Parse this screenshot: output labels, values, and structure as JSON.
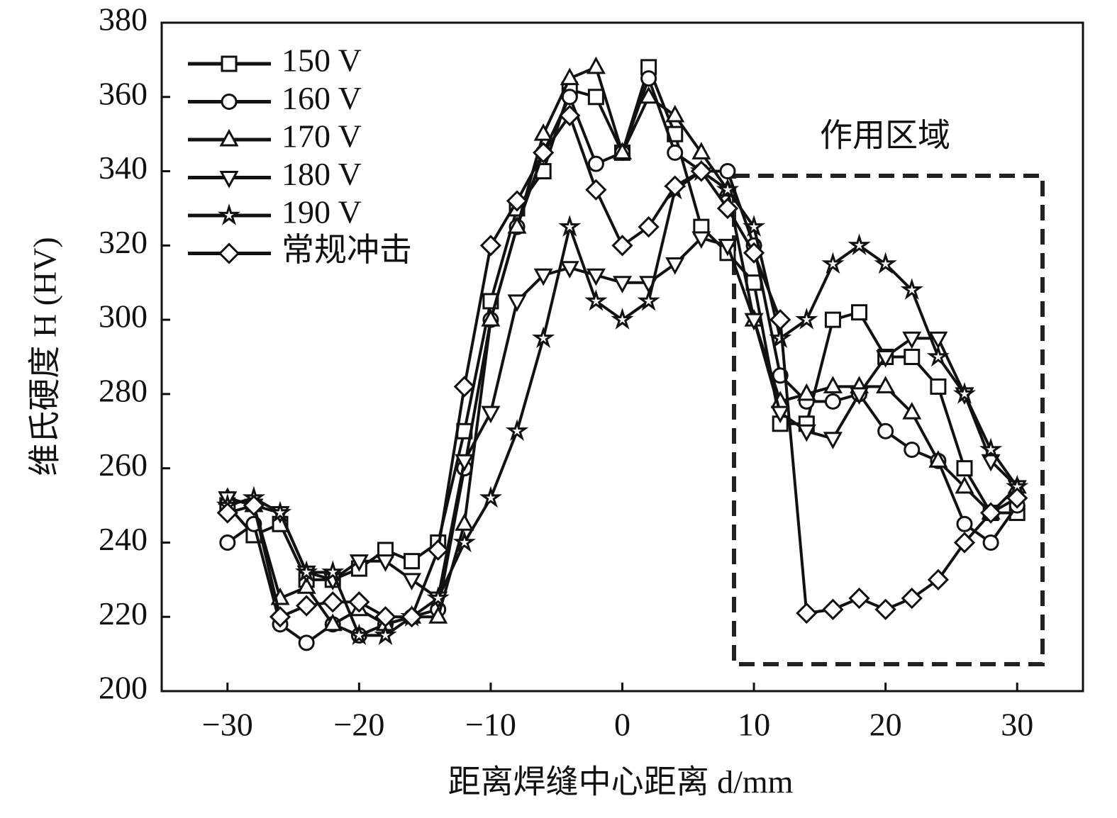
{
  "chart_data": {
    "type": "line",
    "xlabel": "距离焊缝中心距离 d/mm",
    "ylabel": "维氏硬度 H (HV)",
    "annotation": "作用区域",
    "legend": "upper left",
    "xlim": [
      -35,
      35
    ],
    "ylim": [
      200,
      380
    ],
    "xticks": [
      {
        "value": -30,
        "label": "−30"
      },
      {
        "value": -20,
        "label": "−20"
      },
      {
        "value": -10,
        "label": "−10"
      },
      0,
      10,
      20,
      30
    ],
    "yticks": [
      200,
      220,
      240,
      260,
      280,
      300,
      320,
      340,
      360,
      380
    ],
    "x": [
      -30,
      -28,
      -26,
      -24,
      -22,
      -20,
      -18,
      -16,
      -14,
      -12,
      -10,
      -8,
      -6,
      -4,
      -2,
      0,
      2,
      4,
      6,
      8,
      10,
      12,
      14,
      16,
      18,
      20,
      22,
      24,
      26,
      28,
      30
    ],
    "series": [
      {
        "name": "150 V",
        "color": "#111111",
        "marker": "square",
        "values": [
          250,
          242,
          245,
          230,
          230,
          233,
          238,
          235,
          240,
          270,
          305,
          330,
          340,
          362,
          360,
          345,
          368,
          350,
          325,
          318,
          310,
          272,
          272,
          300,
          302,
          290,
          290,
          282,
          260,
          248,
          248
        ]
      },
      {
        "name": "160 V",
        "color": "#111111",
        "marker": "circle",
        "values": [
          240,
          245,
          218,
          213,
          218,
          215,
          218,
          220,
          222,
          260,
          300,
          325,
          345,
          360,
          342,
          345,
          365,
          345,
          340,
          340,
          320,
          285,
          278,
          278,
          280,
          270,
          265,
          262,
          245,
          240,
          250
        ]
      },
      {
        "name": "170 V",
        "color": "#111111",
        "marker": "triangle-up",
        "values": [
          252,
          250,
          225,
          228,
          218,
          222,
          218,
          220,
          220,
          245,
          300,
          325,
          350,
          365,
          368,
          345,
          360,
          355,
          345,
          335,
          300,
          278,
          280,
          282,
          282,
          282,
          275,
          262,
          255,
          248,
          255
        ]
      },
      {
        "name": "180 V",
        "color": "#111111",
        "marker": "triangle-down",
        "values": [
          252,
          250,
          248,
          232,
          230,
          235,
          235,
          230,
          225,
          262,
          275,
          305,
          312,
          314,
          312,
          310,
          310,
          315,
          322,
          320,
          300,
          275,
          270,
          268,
          280,
          290,
          295,
          295,
          280,
          262,
          255
        ]
      },
      {
        "name": "190 V",
        "color": "#111111",
        "marker": "star",
        "values": [
          250,
          252,
          248,
          232,
          232,
          215,
          215,
          220,
          225,
          240,
          252,
          270,
          295,
          325,
          305,
          300,
          305,
          335,
          340,
          335,
          325,
          295,
          300,
          315,
          320,
          315,
          308,
          290,
          280,
          265,
          255
        ]
      },
      {
        "name": "常规冲击",
        "color": "#111111",
        "marker": "diamond",
        "values": [
          248,
          250,
          220,
          223,
          224,
          224,
          220,
          220,
          238,
          282,
          320,
          332,
          345,
          355,
          335,
          320,
          325,
          336,
          340,
          330,
          318,
          300,
          221,
          222,
          225,
          222,
          225,
          230,
          240,
          248,
          252
        ]
      }
    ]
  }
}
